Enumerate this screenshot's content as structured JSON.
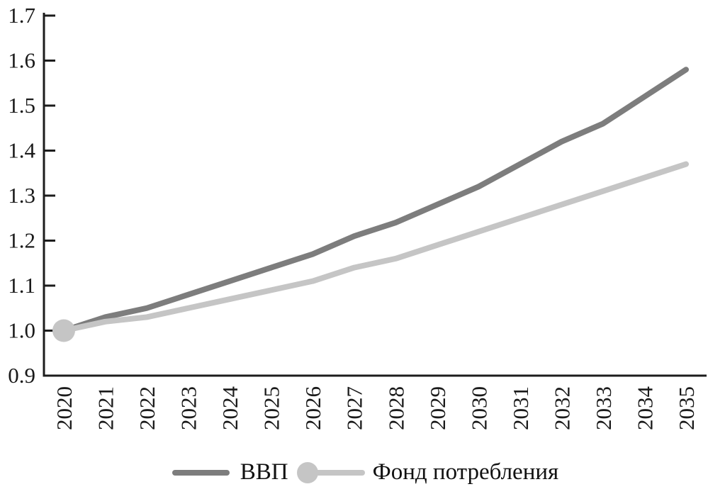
{
  "figure": {
    "background": "#ffffff",
    "axis_color": "#1c1c1c",
    "text_color": "#1a1a1a"
  },
  "chart_data": {
    "type": "line",
    "title": "",
    "xlabel": "",
    "ylabel": "",
    "x": [
      "2020",
      "2021",
      "2022",
      "2023",
      "2024",
      "2025",
      "2026",
      "2027",
      "2028",
      "2029",
      "2030",
      "2031",
      "2032",
      "2033",
      "2034",
      "2035"
    ],
    "ylim": [
      0.9,
      1.7
    ],
    "ytick_labels": [
      "0.9",
      "1.0",
      "1.1",
      "1.2",
      "1.3",
      "1.4",
      "1.5",
      "1.6",
      "1.7"
    ],
    "yticks": [
      0.9,
      1.0,
      1.1,
      1.2,
      1.3,
      1.4,
      1.5,
      1.6,
      1.7
    ],
    "grid": false,
    "legend_position": "bottom-center",
    "x_labels_rotation_deg": -90,
    "series": [
      {
        "name": "ВВП",
        "color": "#7d7d7d",
        "line_width": 8,
        "marker": "none",
        "values": [
          1.0,
          1.03,
          1.05,
          1.08,
          1.11,
          1.14,
          1.17,
          1.21,
          1.24,
          1.28,
          1.32,
          1.37,
          1.42,
          1.46,
          1.52,
          1.58
        ]
      },
      {
        "name": "Фонд потребления",
        "color": "#c5c5c5",
        "line_width": 8,
        "marker": "circle-at-first-point",
        "marker_size": 32,
        "values": [
          1.0,
          1.02,
          1.03,
          1.05,
          1.07,
          1.09,
          1.11,
          1.14,
          1.16,
          1.19,
          1.22,
          1.25,
          1.28,
          1.31,
          1.34,
          1.37
        ]
      }
    ]
  }
}
